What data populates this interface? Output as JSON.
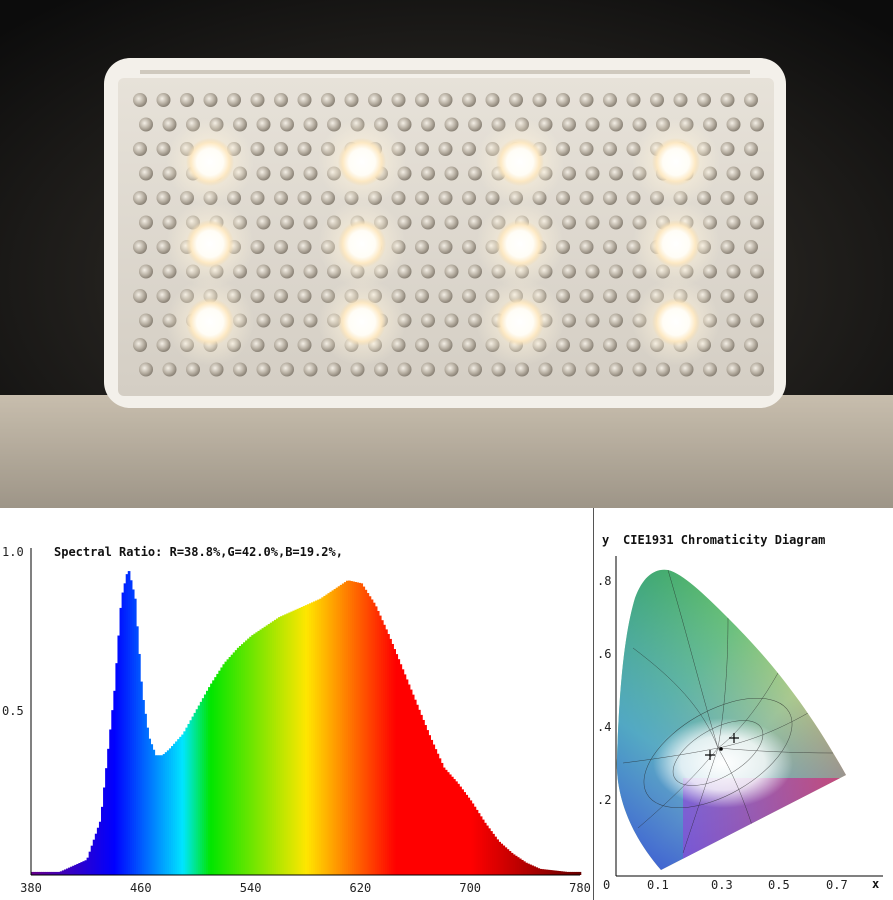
{
  "spectrum": {
    "ratio_text": "Spectral Ratio:  R=38.8%,G=42.0%,B=19.2%,",
    "y_ticks": [
      "1.0",
      "0.5"
    ],
    "x_ticks": [
      "380",
      "460",
      "540",
      "620",
      "700",
      "780"
    ]
  },
  "cie": {
    "title": "CIE1931 Chromaticity Diagram",
    "y_label": "y",
    "x_label": "x",
    "y_ticks": [
      ".8",
      ".6",
      ".4",
      ".2"
    ],
    "x_ticks": [
      "0",
      "0.1",
      "0.3",
      "0.5",
      "0.7"
    ]
  },
  "chart_data": [
    {
      "type": "area",
      "title": "Spectral Ratio:  R=38.8%,G=42.0%,B=19.2%,",
      "xlabel": "",
      "ylabel": "",
      "xlim": [
        380,
        780
      ],
      "ylim": [
        0,
        1.0
      ],
      "x": [
        380,
        400,
        420,
        430,
        440,
        445,
        450,
        455,
        460,
        465,
        470,
        475,
        480,
        490,
        500,
        510,
        520,
        530,
        540,
        550,
        560,
        570,
        580,
        590,
        600,
        610,
        620,
        630,
        640,
        650,
        660,
        670,
        680,
        690,
        700,
        710,
        720,
        730,
        740,
        750,
        760,
        770,
        780
      ],
      "values": [
        0.01,
        0.01,
        0.05,
        0.18,
        0.6,
        0.9,
        1.0,
        0.9,
        0.6,
        0.45,
        0.39,
        0.39,
        0.41,
        0.46,
        0.54,
        0.62,
        0.69,
        0.74,
        0.78,
        0.81,
        0.84,
        0.86,
        0.88,
        0.9,
        0.93,
        0.96,
        0.95,
        0.88,
        0.78,
        0.67,
        0.56,
        0.45,
        0.35,
        0.3,
        0.24,
        0.17,
        0.11,
        0.07,
        0.04,
        0.02,
        0.015,
        0.01,
        0.01
      ],
      "grid": false
    },
    {
      "type": "scatter",
      "title": "CIE1931 Chromaticity Diagram",
      "xlabel": "x",
      "ylabel": "y",
      "xlim": [
        0,
        0.8
      ],
      "ylim": [
        0,
        0.9
      ],
      "x": [
        0.38
      ],
      "values": [
        0.37
      ],
      "grid": false
    }
  ],
  "colors": {
    "axis": "#000000",
    "background": "#ffffff"
  }
}
